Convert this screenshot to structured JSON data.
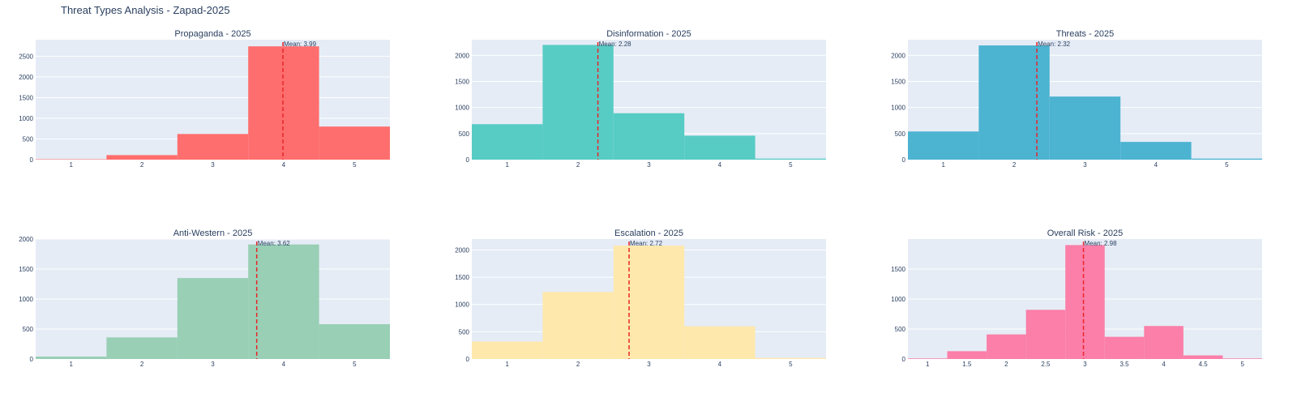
{
  "title": "Threat Types Analysis - Zapad-2025",
  "mean_line_color": "#e8262a",
  "plot_bg": "#e5ecf6",
  "chart_data": [
    {
      "type": "bar",
      "title": "Propaganda - 2025",
      "color": "#ff6e6e",
      "categories": [
        "1",
        "2",
        "3",
        "4",
        "5"
      ],
      "values": [
        10,
        110,
        620,
        2740,
        800
      ],
      "xlim": [
        0.5,
        5.5
      ],
      "ylim": [
        0,
        2900
      ],
      "xticks": [
        1,
        2,
        3,
        4,
        5
      ],
      "yticks": [
        0,
        500,
        1000,
        1500,
        2000,
        2500
      ],
      "bin_edges": [
        0.5,
        1.5,
        2.5,
        3.5,
        4.5,
        5.5
      ],
      "mean": 3.99,
      "mean_label": "Mean: 3.99"
    },
    {
      "type": "bar",
      "title": "Disinformation - 2025",
      "color": "#57ccc4",
      "categories": [
        "1",
        "2",
        "3",
        "4",
        "5"
      ],
      "values": [
        680,
        2200,
        890,
        460,
        20
      ],
      "xlim": [
        0.5,
        5.5
      ],
      "ylim": [
        0,
        2300
      ],
      "xticks": [
        1,
        2,
        3,
        4,
        5
      ],
      "yticks": [
        0,
        500,
        1000,
        1500,
        2000
      ],
      "bin_edges": [
        0.5,
        1.5,
        2.5,
        3.5,
        4.5,
        5.5
      ],
      "mean": 2.28,
      "mean_label": "Mean: 2.28"
    },
    {
      "type": "bar",
      "title": "Threats - 2025",
      "color": "#4cb3d1",
      "categories": [
        "1",
        "2",
        "3",
        "4",
        "5"
      ],
      "values": [
        540,
        2190,
        1210,
        340,
        20
      ],
      "xlim": [
        0.5,
        5.5
      ],
      "ylim": [
        0,
        2300
      ],
      "xticks": [
        1,
        2,
        3,
        4,
        5
      ],
      "yticks": [
        0,
        500,
        1000,
        1500,
        2000
      ],
      "bin_edges": [
        0.5,
        1.5,
        2.5,
        3.5,
        4.5,
        5.5
      ],
      "mean": 2.32,
      "mean_label": "Mean: 2.32"
    },
    {
      "type": "bar",
      "title": "Anti-Western - 2025",
      "color": "#98cfb5",
      "categories": [
        "1",
        "2",
        "3",
        "4",
        "5"
      ],
      "values": [
        40,
        360,
        1350,
        1910,
        580
      ],
      "xlim": [
        0.5,
        5.5
      ],
      "ylim": [
        0,
        2000
      ],
      "xticks": [
        1,
        2,
        3,
        4,
        5
      ],
      "yticks": [
        0,
        500,
        1000,
        1500,
        2000
      ],
      "bin_edges": [
        0.5,
        1.5,
        2.5,
        3.5,
        4.5,
        5.5
      ],
      "mean": 3.62,
      "mean_label": "Mean: 3.62"
    },
    {
      "type": "bar",
      "title": "Escalation - 2025",
      "color": "#fee8ac",
      "categories": [
        "1",
        "2",
        "3",
        "4",
        "5"
      ],
      "values": [
        320,
        1230,
        2080,
        600,
        20
      ],
      "xlim": [
        0.5,
        5.5
      ],
      "ylim": [
        0,
        2200
      ],
      "xticks": [
        1,
        2,
        3,
        4,
        5
      ],
      "yticks": [
        0,
        500,
        1000,
        1500,
        2000
      ],
      "bin_edges": [
        0.5,
        1.5,
        2.5,
        3.5,
        4.5,
        5.5
      ],
      "mean": 2.72,
      "mean_label": "Mean: 2.72"
    },
    {
      "type": "bar",
      "title": "Overall Risk - 2025",
      "color": "#fb7fa8",
      "categories": [
        "1",
        "1.5",
        "2",
        "2.5",
        "3",
        "3.5",
        "4",
        "4.5",
        "5"
      ],
      "values": [
        10,
        130,
        410,
        820,
        1900,
        370,
        550,
        60,
        10
      ],
      "xlim": [
        0.75,
        5.25
      ],
      "ylim": [
        0,
        2000
      ],
      "xticks": [
        1,
        1.5,
        2,
        2.5,
        3,
        3.5,
        4,
        4.5,
        5
      ],
      "yticks": [
        0,
        500,
        1000,
        1500
      ],
      "bin_edges": [
        0.75,
        1.25,
        1.75,
        2.25,
        2.75,
        3.25,
        3.75,
        4.25,
        4.75,
        5.25
      ],
      "mean": 2.98,
      "mean_label": "Mean: 2.98"
    }
  ]
}
